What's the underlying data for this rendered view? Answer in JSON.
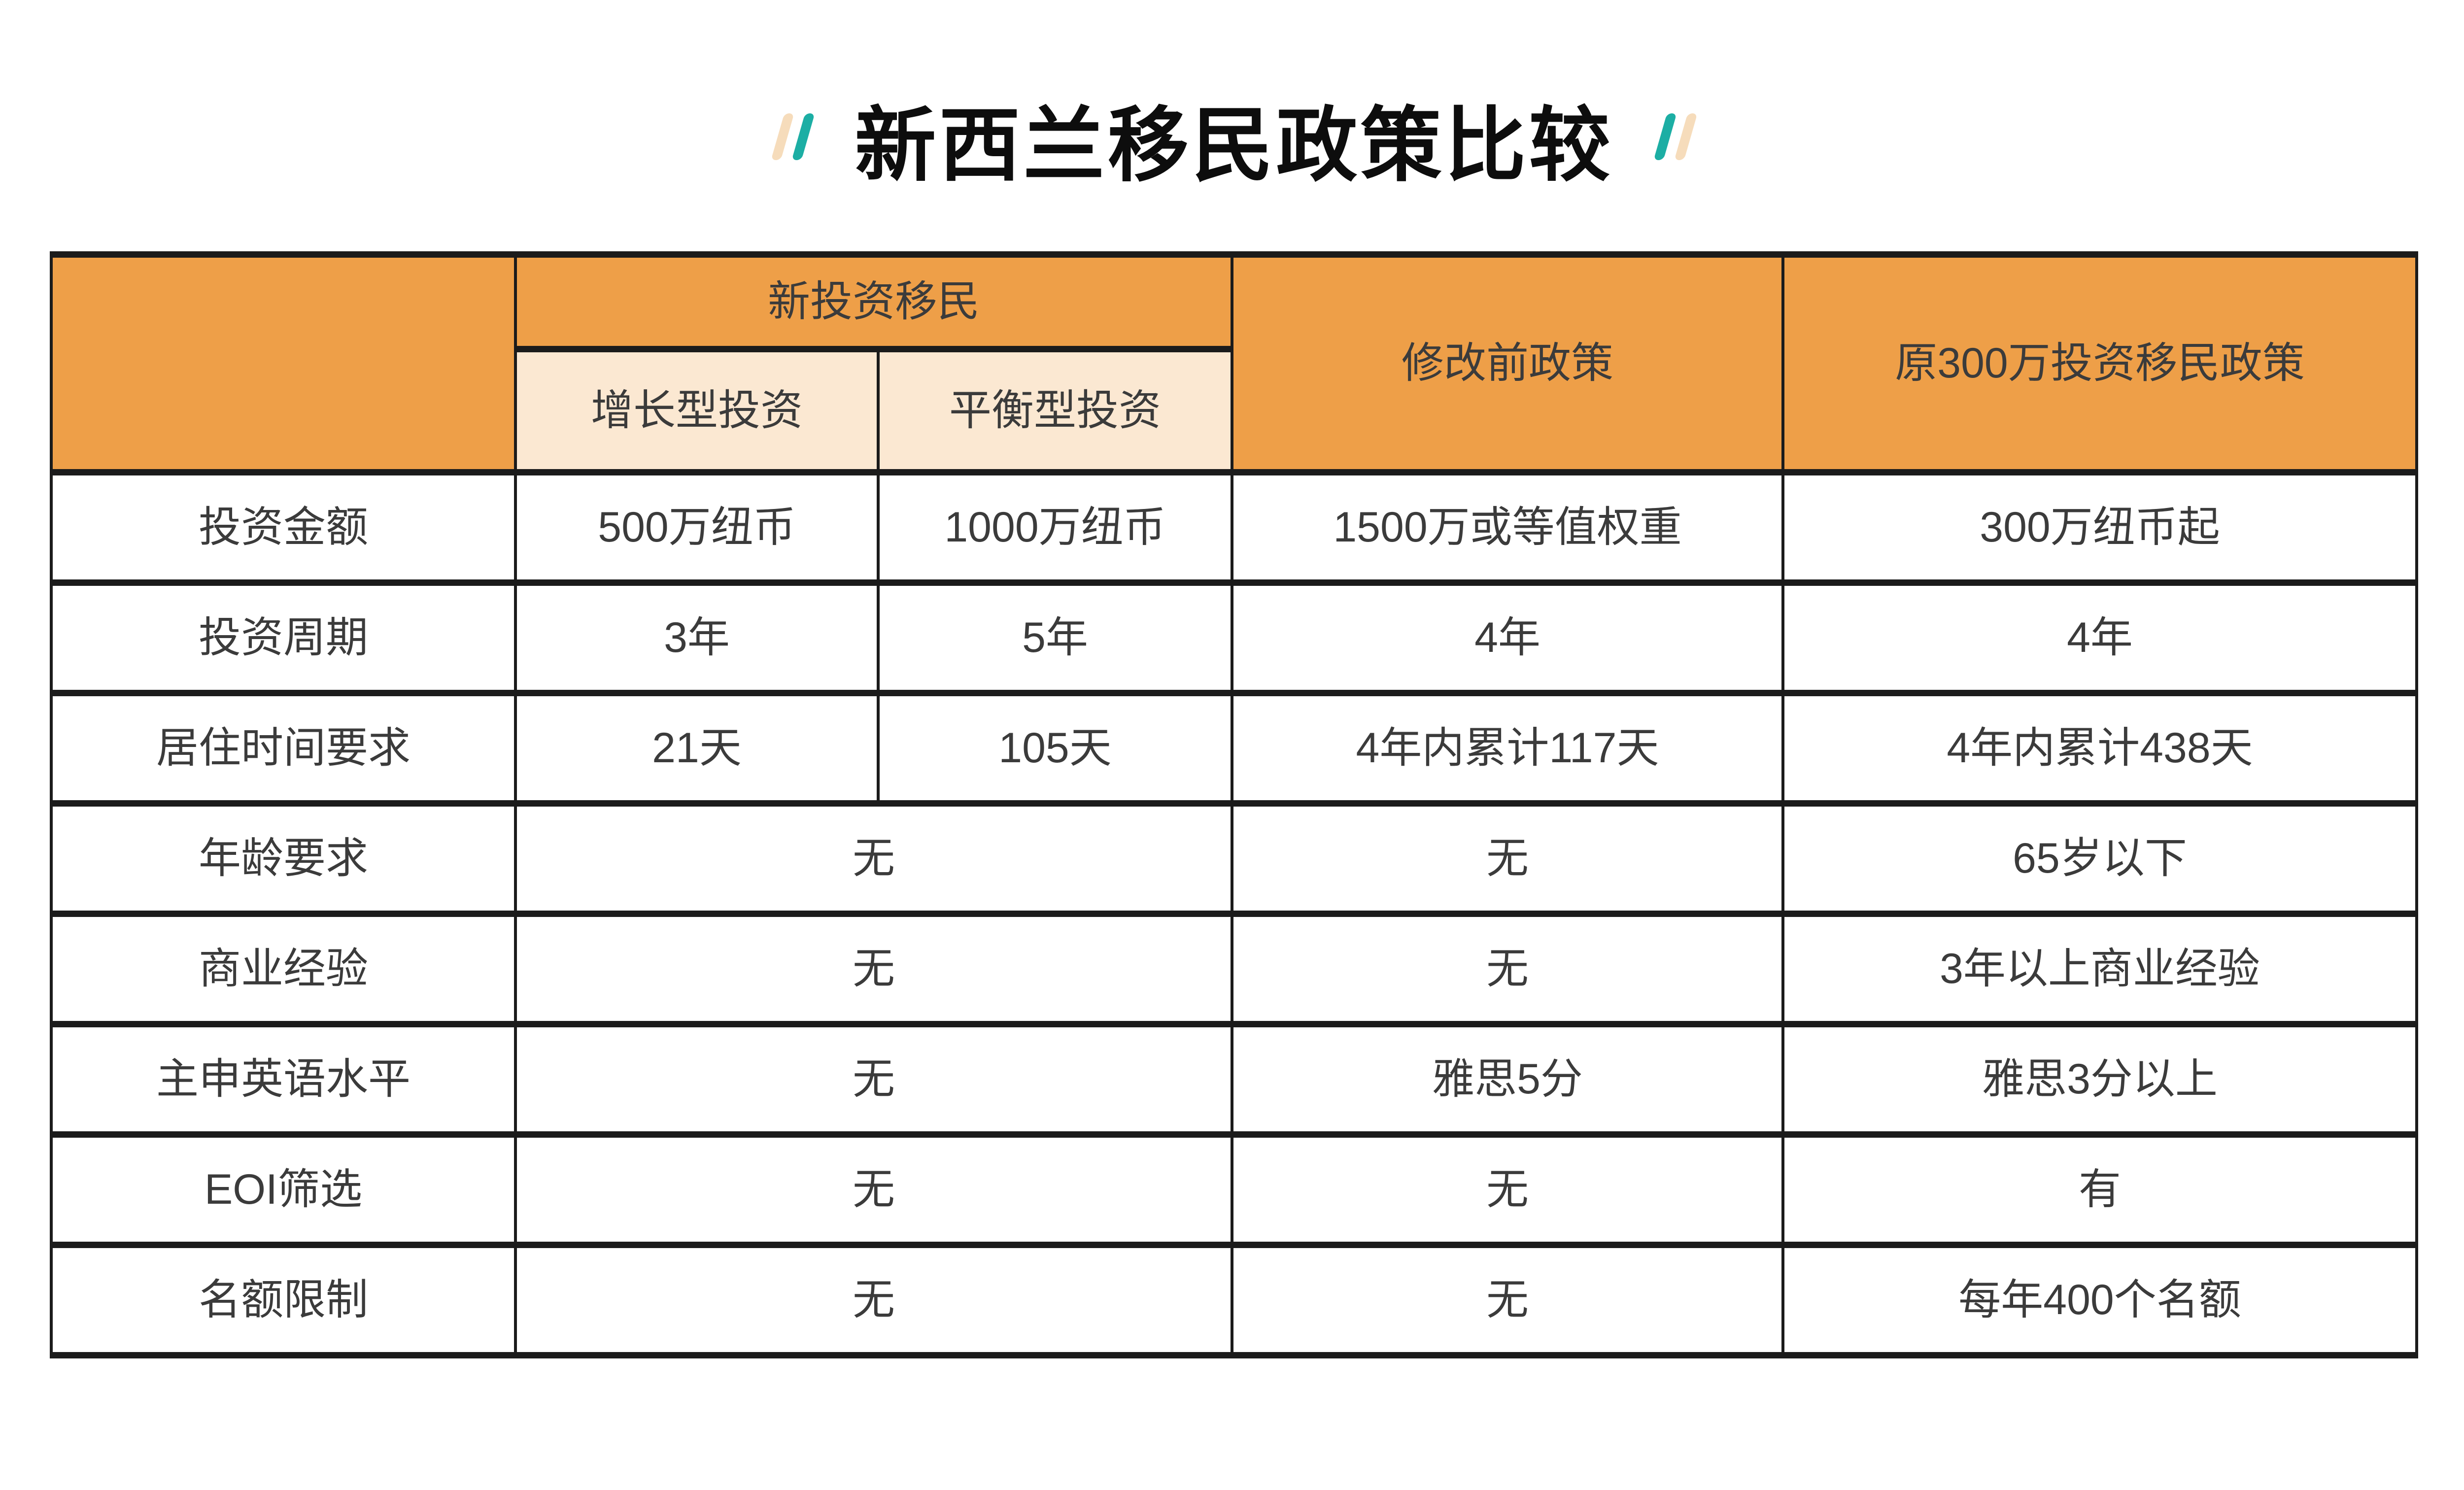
{
  "title": {
    "text": "新西兰移民政策比较"
  },
  "colors": {
    "orange_header": "#EE9F48",
    "cream_subheader": "#FBE8D2",
    "teal_accent": "#1CAEA4",
    "cream_accent": "#F6DCBB",
    "border": "#1B1B1B",
    "text": "#3B3B3B"
  },
  "table": {
    "header": {
      "corner": "",
      "group": "新投资移民",
      "subcols": [
        "增长型投资",
        "平衡型投资"
      ],
      "col4": "修改前政策",
      "col5": "原300万投资移民政策"
    },
    "rows": [
      {
        "label": "投资金额",
        "merged": false,
        "cells": [
          "500万纽币",
          "1000万纽币",
          "1500万或等值权重",
          "300万纽币起"
        ]
      },
      {
        "label": "投资周期",
        "merged": false,
        "cells": [
          "3年",
          "5年",
          "4年",
          "4年"
        ]
      },
      {
        "label": "居住时间要求",
        "merged": false,
        "cells": [
          "21天",
          "105天",
          "4年内累计117天",
          "4年内累计438天"
        ]
      },
      {
        "label": "年龄要求",
        "merged": true,
        "cells": [
          "无",
          "无",
          "65岁以下"
        ]
      },
      {
        "label": "商业经验",
        "merged": true,
        "cells": [
          "无",
          "无",
          "3年以上商业经验"
        ]
      },
      {
        "label": "主申英语水平",
        "merged": true,
        "cells": [
          "无",
          "雅思5分",
          "雅思3分以上"
        ]
      },
      {
        "label": "EOI筛选",
        "merged": true,
        "cells": [
          "无",
          "无",
          "有"
        ]
      },
      {
        "label": "名额限制",
        "merged": true,
        "cells": [
          "无",
          "无",
          "每年400个名额"
        ]
      }
    ]
  },
  "chart_data": {
    "type": "table",
    "title": "新西兰移民政策比较",
    "column_groups": [
      {
        "label": "新投资移民",
        "subcolumns": [
          "增长型投资",
          "平衡型投资"
        ]
      }
    ],
    "columns": [
      "",
      "新投资移民-增长型投资",
      "新投资移民-平衡型投资",
      "修改前政策",
      "原300万投资移民政策"
    ],
    "rows": [
      [
        "投资金额",
        "500万纽币",
        "1000万纽币",
        "1500万或等值权重",
        "300万纽币起"
      ],
      [
        "投资周期",
        "3年",
        "5年",
        "4年",
        "4年"
      ],
      [
        "居住时间要求",
        "21天",
        "105天",
        "4年内累计117天",
        "4年内累计438天"
      ],
      [
        "年龄要求",
        "无",
        "无",
        "无",
        "65岁以下"
      ],
      [
        "商业经验",
        "无",
        "无",
        "无",
        "3年以上商业经验"
      ],
      [
        "主申英语水平",
        "无",
        "无",
        "雅思5分",
        "雅思3分以上"
      ],
      [
        "EOI筛选",
        "无",
        "无",
        "无",
        "有"
      ],
      [
        "名额限制",
        "无",
        "无",
        "无",
        "每年400个名额"
      ]
    ]
  }
}
